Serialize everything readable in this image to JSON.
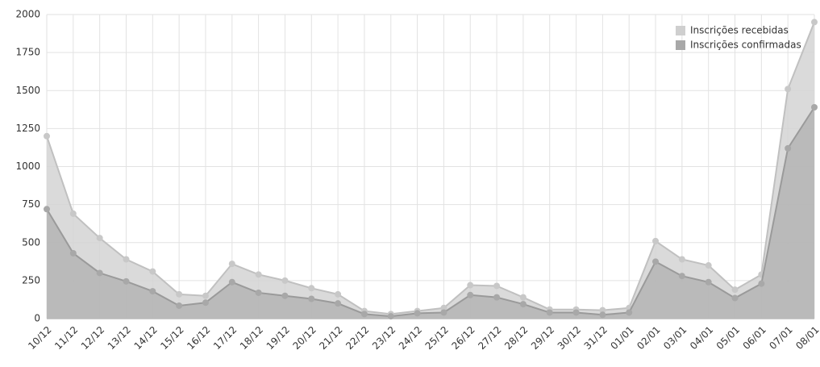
{
  "chart_data": {
    "type": "area",
    "categories": [
      "10/12",
      "11/12",
      "12/12",
      "13/12",
      "14/12",
      "15/12",
      "16/12",
      "17/12",
      "18/12",
      "19/12",
      "20/12",
      "21/12",
      "22/12",
      "23/12",
      "24/12",
      "25/12",
      "26/12",
      "27/12",
      "28/12",
      "29/12",
      "30/12",
      "31/12",
      "01/01",
      "02/01",
      "03/01",
      "04/01",
      "05/01",
      "06/01",
      "07/01",
      "08/01"
    ],
    "series": [
      {
        "name": "Inscrições recebidas",
        "color": "#d4d4d4",
        "values": [
          1200,
          690,
          530,
          390,
          310,
          160,
          150,
          360,
          290,
          250,
          200,
          160,
          50,
          30,
          50,
          70,
          220,
          215,
          140,
          60,
          60,
          55,
          70,
          510,
          390,
          350,
          190,
          290,
          1510,
          1950
        ]
      },
      {
        "name": "Inscrições confirmadas",
        "color": "#b4b4b4",
        "values": [
          720,
          430,
          300,
          245,
          180,
          85,
          105,
          240,
          170,
          150,
          130,
          100,
          30,
          15,
          35,
          40,
          155,
          140,
          95,
          40,
          40,
          25,
          40,
          375,
          280,
          240,
          135,
          230,
          1120,
          1390
        ]
      }
    ],
    "ylim": [
      0,
      2000
    ],
    "yticks": [
      0,
      250,
      500,
      750,
      1000,
      1250,
      1500,
      1750,
      2000
    ],
    "grid": true,
    "legend": "top-right"
  }
}
